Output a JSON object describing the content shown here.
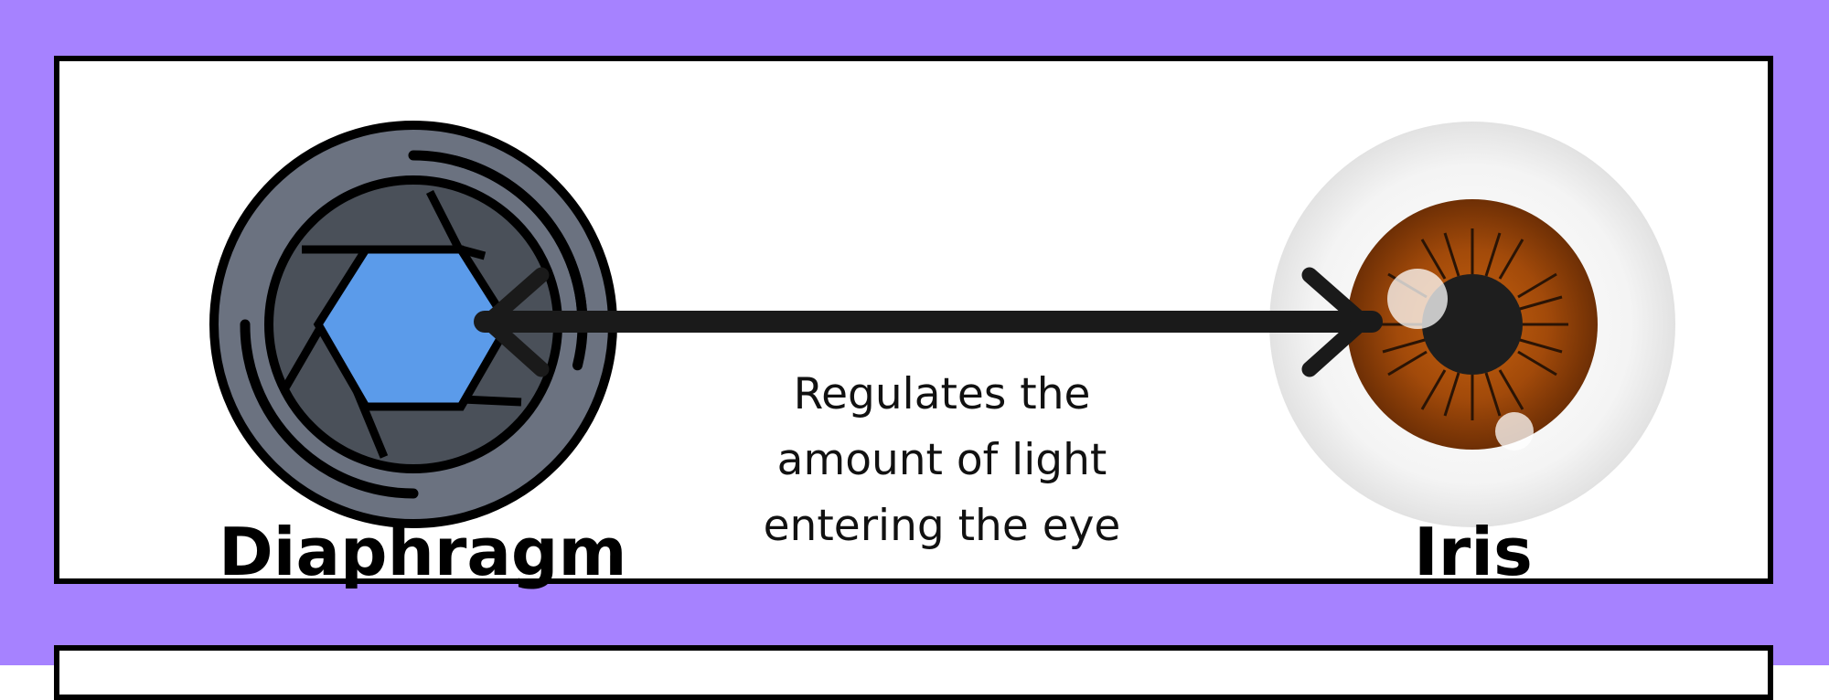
{
  "colors": {
    "background": "#a682ff",
    "panel": "#ffffff",
    "border": "#000000",
    "aperture_blue": "#5b9bea",
    "lens_gray": "#6b7280",
    "iris_brown": "#8b3f0c"
  },
  "left_item": {
    "label": "Diaphragm",
    "icon": "camera-aperture-icon"
  },
  "right_item": {
    "label": "Iris",
    "icon": "eye-iris-icon"
  },
  "connector": {
    "type": "double-headed-arrow",
    "description_lines": [
      "Regulates the",
      "amount of light",
      "entering the eye"
    ]
  }
}
